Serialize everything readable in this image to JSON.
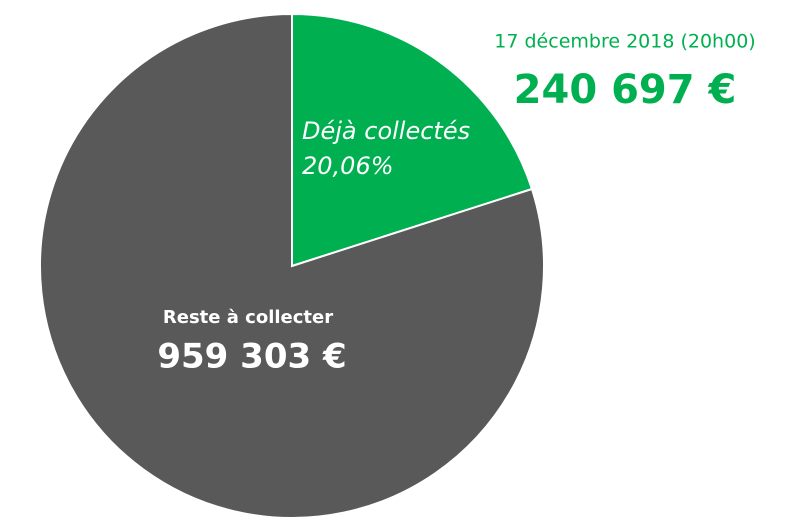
{
  "chart_data": {
    "type": "pie",
    "categories": [
      "Déjà collectés",
      "Reste à collecter"
    ],
    "values": [
      240697,
      959303
    ],
    "value_labels": [
      "240 697 €",
      "959 303 €"
    ],
    "colors": [
      "#00b050",
      "#595959"
    ],
    "share_label": {
      "value": 20.06,
      "label": "20,06%"
    },
    "annotation": "17 décembre 2018 (20h00)"
  }
}
